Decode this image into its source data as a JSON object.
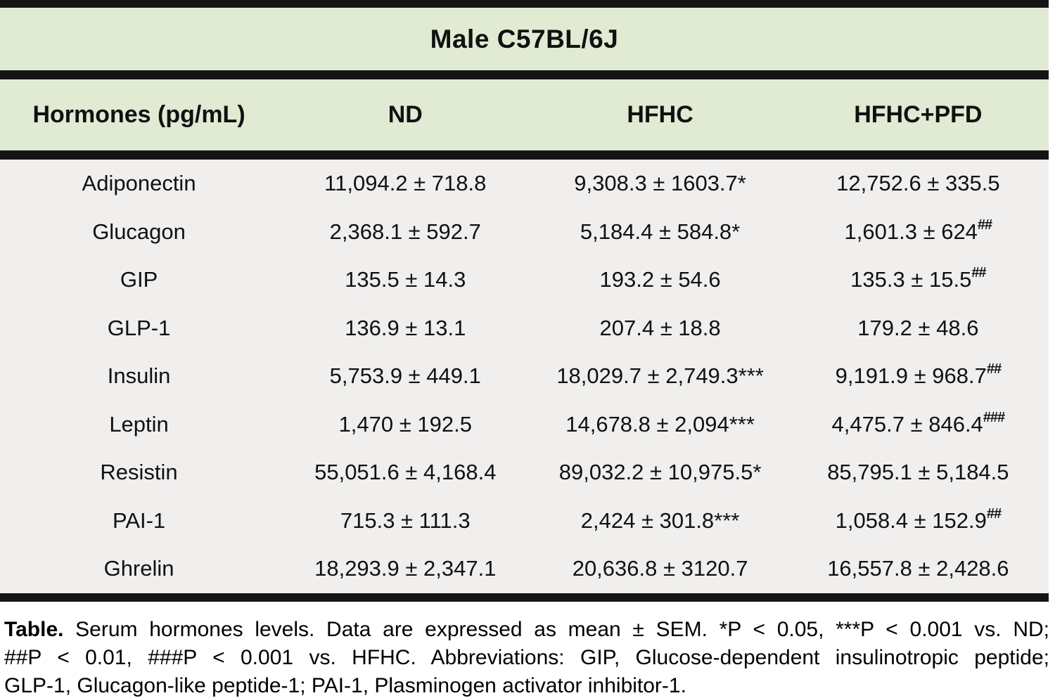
{
  "table": {
    "title": "Male C57BL/6J",
    "columns": [
      "Hormones (pg/mL)",
      "ND",
      "HFHC",
      "HFHC+PFD"
    ],
    "rows": [
      {
        "name": "Adiponectin",
        "nd": "11,094.2 ± 718.8",
        "hfhc": "9,308.3 ± 1603.7*",
        "pfd": "12,752.6 ± 335.5",
        "pfd_sup": ""
      },
      {
        "name": "Glucagon",
        "nd": "2,368.1 ± 592.7",
        "hfhc": "5,184.4 ± 584.8*",
        "pfd": "1,601.3 ± 624",
        "pfd_sup": "##"
      },
      {
        "name": "GIP",
        "nd": "135.5 ± 14.3",
        "hfhc": "193.2 ± 54.6",
        "pfd": "135.3 ± 15.5",
        "pfd_sup": "##"
      },
      {
        "name": "GLP-1",
        "nd": "136.9 ± 13.1",
        "hfhc": "207.4 ± 18.8",
        "pfd": "179.2 ± 48.6",
        "pfd_sup": ""
      },
      {
        "name": "Insulin",
        "nd": "5,753.9 ± 449.1",
        "hfhc": "18,029.7 ± 2,749.3***",
        "pfd": "9,191.9 ± 968.7",
        "pfd_sup": "##"
      },
      {
        "name": "Leptin",
        "nd": "1,470 ± 192.5",
        "hfhc": "14,678.8 ± 2,094***",
        "pfd": "4,475.7 ± 846.4",
        "pfd_sup": "###"
      },
      {
        "name": "Resistin",
        "nd": "55,051.6 ± 4,168.4",
        "hfhc": "89,032.2 ± 10,975.5*",
        "pfd": "85,795.1 ± 5,184.5",
        "pfd_sup": ""
      },
      {
        "name": "PAI-1",
        "nd": "715.3 ± 111.3",
        "hfhc": "2,424 ± 301.8***",
        "pfd": "1,058.4 ± 152.9",
        "pfd_sup": "##"
      },
      {
        "name": "Ghrelin",
        "nd": "18,293.9 ± 2,347.1",
        "hfhc": "20,636.8 ± 3120.7",
        "pfd": "16,557.8 ± 2,428.6",
        "pfd_sup": ""
      }
    ]
  },
  "caption": {
    "bold_prefix": "Table.",
    "line1_rest": " Serum hormones levels. Data are expressed as mean ± SEM. *P < 0.05, ***P < 0.001 vs. ND;",
    "line2": "##P < 0.01, ###P < 0.001 vs. HFHC. Abbreviations: GIP, Glucose-dependent insulinotropic peptide;",
    "line3": "GLP-1, Glucagon-like peptide-1; PAI-1, Plasminogen activator inhibitor-1."
  },
  "colors": {
    "header_bg": "#e1ead3",
    "data_bg": "#f0efee",
    "rule": "#141414",
    "page_bg": "#ffffff",
    "text": "#111111"
  },
  "chart_data": {
    "type": "table",
    "title": "Male C57BL/6J",
    "columns": [
      "Hormones (pg/mL)",
      "ND",
      "HFHC",
      "HFHC+PFD"
    ],
    "rows": [
      [
        "Adiponectin",
        "11,094.2 ± 718.8",
        "9,308.3 ± 1603.7*",
        "12,752.6 ± 335.5"
      ],
      [
        "Glucagon",
        "2,368.1 ± 592.7",
        "5,184.4 ± 584.8*",
        "1,601.3 ± 624##"
      ],
      [
        "GIP",
        "135.5 ± 14.3",
        "193.2 ± 54.6",
        "135.3 ± 15.5##"
      ],
      [
        "GLP-1",
        "136.9 ± 13.1",
        "207.4 ± 18.8",
        "179.2 ± 48.6"
      ],
      [
        "Insulin",
        "5,753.9 ± 449.1",
        "18,029.7 ± 2,749.3***",
        "9,191.9 ± 968.7##"
      ],
      [
        "Leptin",
        "1,470 ± 192.5",
        "14,678.8 ± 2,094***",
        "4,475.7 ± 846.4###"
      ],
      [
        "Resistin",
        "55,051.6 ± 4,168.4",
        "89,032.2 ± 10,975.5*",
        "85,795.1 ± 5,184.5"
      ],
      [
        "PAI-1",
        "715.3 ± 111.3",
        "2,424 ± 301.8***",
        "1,058.4 ± 152.9##"
      ],
      [
        "Ghrelin",
        "18,293.9 ± 2,347.1",
        "20,636.8 ± 3120.7",
        "16,557.8 ± 2,428.6"
      ]
    ]
  }
}
